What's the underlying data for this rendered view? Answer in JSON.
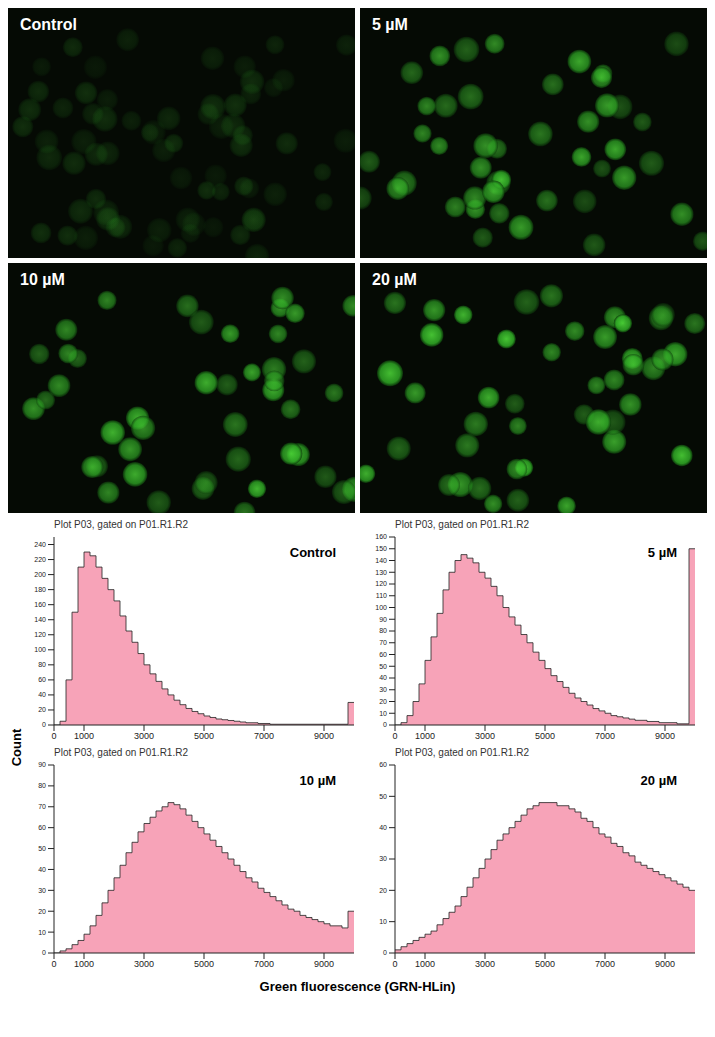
{
  "figure": {
    "y_label": "Count",
    "x_label": "Green fluorescence (GRN-HLin)"
  },
  "images": [
    {
      "label": "Control"
    },
    {
      "label": "5 µM"
    },
    {
      "label": "10 µM"
    },
    {
      "label": "20 µM"
    }
  ],
  "chart_data": [
    {
      "type": "histogram",
      "title": "Plot P03, gated on P01.R1.R2",
      "label": "Control",
      "bins": [
        0,
        200,
        400,
        600,
        800,
        1000,
        1200,
        1400,
        1600,
        1800,
        2000,
        2200,
        2400,
        2600,
        2800,
        3000,
        3200,
        3400,
        3600,
        3800,
        4000,
        4200,
        4400,
        4600,
        4800,
        5000,
        5200,
        5400,
        5600,
        5800,
        6000,
        6200,
        6400,
        6600,
        6800,
        7000,
        7200,
        7400,
        7600,
        7800,
        8000,
        8200,
        8400,
        8600,
        8800,
        9000,
        9200,
        9400,
        9600,
        9800,
        10000
      ],
      "counts": [
        0,
        5,
        60,
        150,
        210,
        230,
        225,
        210,
        195,
        180,
        165,
        145,
        125,
        110,
        95,
        80,
        68,
        58,
        48,
        40,
        33,
        27,
        22,
        18,
        15,
        12,
        10,
        8,
        7,
        6,
        5,
        4,
        3,
        3,
        2,
        2,
        1,
        1,
        1,
        1,
        1,
        1,
        1,
        1,
        1,
        1,
        1,
        1,
        1,
        30
      ],
      "xlim": [
        0,
        10000
      ],
      "xticks": [
        0,
        1000,
        3000,
        5000,
        7000,
        9000
      ],
      "ylim": [
        0,
        250
      ],
      "yticks": [
        0,
        20,
        40,
        60,
        80,
        100,
        120,
        140,
        160,
        180,
        200,
        220,
        240
      ],
      "color": "#f7a3b8"
    },
    {
      "type": "histogram",
      "title": "Plot P03, gated on P01.R1.R2",
      "label": "5 µM",
      "bins": [
        0,
        200,
        400,
        600,
        800,
        1000,
        1200,
        1400,
        1600,
        1800,
        2000,
        2200,
        2400,
        2600,
        2800,
        3000,
        3200,
        3400,
        3600,
        3800,
        4000,
        4200,
        4400,
        4600,
        4800,
        5000,
        5200,
        5400,
        5600,
        5800,
        6000,
        6200,
        6400,
        6600,
        6800,
        7000,
        7200,
        7400,
        7600,
        7800,
        8000,
        8200,
        8400,
        8600,
        8800,
        9000,
        9200,
        9400,
        9600,
        9800,
        10000
      ],
      "counts": [
        0,
        2,
        8,
        20,
        35,
        55,
        75,
        95,
        115,
        130,
        140,
        145,
        142,
        138,
        130,
        125,
        118,
        110,
        100,
        92,
        85,
        77,
        70,
        62,
        55,
        48,
        42,
        37,
        32,
        27,
        23,
        20,
        17,
        14,
        12,
        10,
        8,
        7,
        6,
        5,
        4,
        4,
        3,
        3,
        2,
        2,
        2,
        1,
        1,
        150
      ],
      "xlim": [
        0,
        10000
      ],
      "xticks": [
        0,
        1000,
        3000,
        5000,
        7000,
        9000
      ],
      "ylim": [
        0,
        160
      ],
      "yticks": [
        0,
        10,
        20,
        30,
        40,
        50,
        60,
        70,
        80,
        90,
        100,
        110,
        120,
        130,
        140,
        150,
        160
      ],
      "color": "#f7a3b8"
    },
    {
      "type": "histogram",
      "title": "Plot P03, gated on P01.R1.R2",
      "label": "10 µM",
      "bins": [
        0,
        200,
        400,
        600,
        800,
        1000,
        1200,
        1400,
        1600,
        1800,
        2000,
        2200,
        2400,
        2600,
        2800,
        3000,
        3200,
        3400,
        3600,
        3800,
        4000,
        4200,
        4400,
        4600,
        4800,
        5000,
        5200,
        5400,
        5600,
        5800,
        6000,
        6200,
        6400,
        6600,
        6800,
        7000,
        7200,
        7400,
        7600,
        7800,
        8000,
        8200,
        8400,
        8600,
        8800,
        9000,
        9200,
        9400,
        9600,
        9800,
        10000
      ],
      "counts": [
        0,
        1,
        2,
        4,
        6,
        9,
        13,
        18,
        24,
        30,
        36,
        42,
        48,
        53,
        58,
        62,
        65,
        68,
        70,
        72,
        71,
        69,
        66,
        63,
        60,
        57,
        54,
        51,
        48,
        45,
        42,
        39,
        36,
        34,
        31,
        29,
        27,
        25,
        23,
        21,
        20,
        18,
        17,
        16,
        15,
        14,
        13,
        13,
        12,
        20
      ],
      "xlim": [
        0,
        10000
      ],
      "xticks": [
        0,
        1000,
        3000,
        5000,
        7000,
        9000
      ],
      "ylim": [
        0,
        90
      ],
      "yticks": [
        0,
        10,
        20,
        30,
        40,
        50,
        60,
        70,
        80,
        90
      ],
      "color": "#f7a3b8"
    },
    {
      "type": "histogram",
      "title": "Plot P03, gated on P01.R1.R2",
      "label": "20 µM",
      "bins": [
        0,
        200,
        400,
        600,
        800,
        1000,
        1200,
        1400,
        1600,
        1800,
        2000,
        2200,
        2400,
        2600,
        2800,
        3000,
        3200,
        3400,
        3600,
        3800,
        4000,
        4200,
        4400,
        4600,
        4800,
        5000,
        5200,
        5400,
        5600,
        5800,
        6000,
        6200,
        6400,
        6600,
        6800,
        7000,
        7200,
        7400,
        7600,
        7800,
        8000,
        8200,
        8400,
        8600,
        8800,
        9000,
        9200,
        9400,
        9600,
        9800,
        10000
      ],
      "counts": [
        1,
        2,
        3,
        4,
        5,
        6,
        7,
        9,
        11,
        13,
        15,
        18,
        21,
        24,
        27,
        30,
        33,
        36,
        38,
        40,
        42,
        44,
        46,
        47,
        48,
        48,
        48,
        47,
        47,
        46,
        45,
        43,
        42,
        40,
        38,
        37,
        35,
        34,
        32,
        31,
        29,
        28,
        27,
        26,
        25,
        24,
        23,
        22,
        21,
        20
      ],
      "xlim": [
        0,
        10000
      ],
      "xticks": [
        0,
        1000,
        3000,
        5000,
        7000,
        9000
      ],
      "ylim": [
        0,
        60
      ],
      "yticks": [
        0,
        10,
        20,
        30,
        40,
        50,
        60
      ],
      "color": "#f7a3b8"
    }
  ]
}
